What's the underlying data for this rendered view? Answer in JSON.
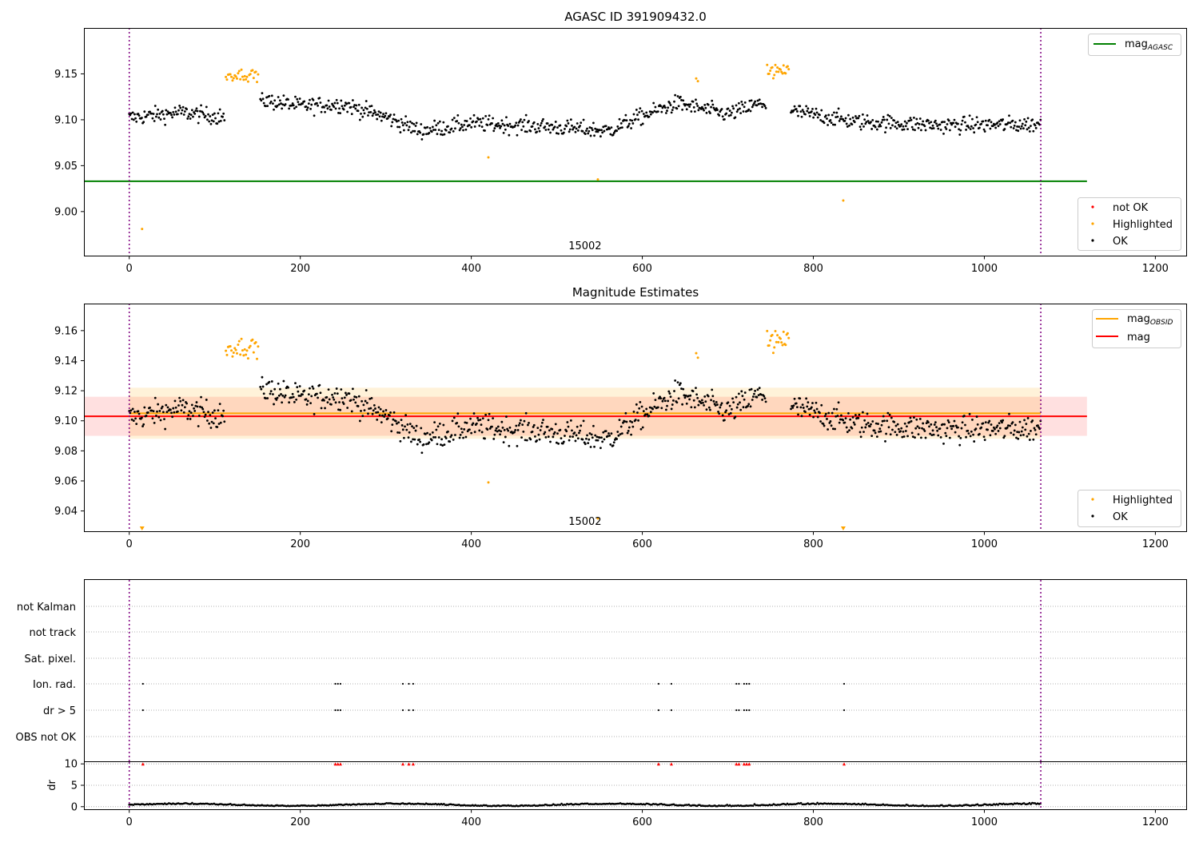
{
  "chart_data": [
    {
      "type": "scatter",
      "title": "AGASC ID 391909432.0",
      "xlabel": "",
      "ylabel": "",
      "xlim": [
        -53,
        1237
      ],
      "ylim": [
        8.952,
        9.2
      ],
      "xticks": [
        0,
        200,
        400,
        600,
        800,
        1000,
        1200
      ],
      "yticks": [
        9.0,
        9.05,
        9.1,
        9.15
      ],
      "ytick_labels": [
        "9.00",
        "9.05",
        "9.10",
        "9.15"
      ],
      "grid": false,
      "obsid_label": {
        "text": "15002",
        "x": 533
      },
      "obsid_bounds": [
        0,
        1066
      ],
      "mag_agasc": {
        "name": "mag",
        "subscript": "AGASC",
        "value": 9.033,
        "x_range": [
          -53,
          1120
        ],
        "color": "#008000"
      },
      "legend_lines_placement": "top-right",
      "legend_points_placement": "lower-right",
      "legend_points": [
        {
          "name": "not OK",
          "color": "#ff0000"
        },
        {
          "name": "Highlighted",
          "color": "#ffa500"
        },
        {
          "name": "OK",
          "color": "#000000"
        }
      ],
      "series": [
        {
          "name": "OK",
          "color": "#000000",
          "note": "about 1000 samples, 9.07–9.14, gaps near 0–115 pattern"
        },
        {
          "name": "Highlighted",
          "color": "#ffa500",
          "x": [
            15,
            420,
            548,
            835,
            663,
            665
          ],
          "y": [
            8.981,
            9.059,
            9.035,
            9.012,
            9.145,
            9.142
          ]
        }
      ]
    },
    {
      "type": "scatter",
      "title": "Magnitude Estimates",
      "xlabel": "",
      "ylabel": "",
      "xlim": [
        -53,
        1237
      ],
      "ylim": [
        9.0265,
        9.178
      ],
      "xticks": [
        0,
        200,
        400,
        600,
        800,
        1000,
        1200
      ],
      "yticks": [
        9.04,
        9.06,
        9.08,
        9.1,
        9.12,
        9.14,
        9.16
      ],
      "ytick_labels": [
        "9.04",
        "9.06",
        "9.08",
        "9.10",
        "9.12",
        "9.14",
        "9.16"
      ],
      "grid": false,
      "obsid_label": {
        "text": "15002",
        "x": 533
      },
      "obsid_bounds": [
        0,
        1066
      ],
      "mag_obsid": {
        "name": "mag",
        "subscript": "OBSID",
        "value": 9.105,
        "band": [
          9.088,
          9.122
        ],
        "x_range": [
          0,
          1066
        ],
        "color": "#ffa500"
      },
      "mag": {
        "name": "mag",
        "value": 9.103,
        "band": [
          9.09,
          9.116
        ],
        "x_range": [
          -53,
          1120
        ],
        "color": "#ff0000"
      },
      "legend_lines_placement": "top-right",
      "legend_points_placement": "lower-right",
      "legend_points": [
        {
          "name": "Highlighted",
          "color": "#ffa500"
        },
        {
          "name": "OK",
          "color": "#000000"
        }
      ],
      "series": [
        {
          "name": "OK",
          "color": "#000000"
        },
        {
          "name": "Highlighted",
          "color": "#ffa500"
        }
      ],
      "clipped_markers": [
        15,
        835
      ]
    },
    {
      "type": "scatter",
      "title": "",
      "xlim": [
        -53,
        1237
      ],
      "xticks": [
        0,
        200,
        400,
        600,
        800,
        1000,
        1200
      ],
      "grid": true,
      "categories": [
        "not Kalman",
        "not track",
        "Sat. pixel.",
        "Ion. rad.",
        "dr > 5",
        "OBS not OK"
      ],
      "flag_events": {
        "Ion. rad.": [
          16,
          241,
          244,
          247,
          320,
          327,
          332,
          619,
          634,
          710,
          713,
          719,
          722,
          725,
          836
        ],
        "dr > 5": [
          16,
          241,
          244,
          247,
          320,
          327,
          332,
          619,
          634,
          710,
          713,
          719,
          722,
          725,
          836
        ]
      },
      "obsid_bounds": [
        0,
        1066
      ]
    },
    {
      "type": "line",
      "title": "",
      "ylabel": "dr",
      "xlim": [
        -53,
        1237
      ],
      "ylim": [
        -0.6,
        10.6
      ],
      "xticks": [
        0,
        200,
        400,
        600,
        800,
        1000,
        1200
      ],
      "yticks": [
        0,
        5,
        10
      ],
      "ytick_labels": [
        "0",
        "5",
        "10"
      ],
      "grid": true,
      "dr_clipped_x": [
        16,
        241,
        244,
        247,
        320,
        327,
        332,
        619,
        634,
        710,
        713,
        719,
        722,
        725,
        836
      ],
      "dr_clip_value": 10,
      "obsid_bounds": [
        0,
        1066
      ]
    }
  ]
}
